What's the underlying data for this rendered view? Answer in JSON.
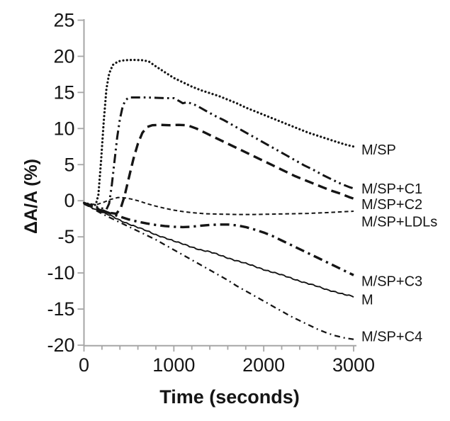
{
  "figure": {
    "background": "#ffffff",
    "ink_color": "#151515",
    "axis_color": "#a6a6a6"
  },
  "chart_data": {
    "type": "line",
    "title": "",
    "xlabel": "Time (seconds)",
    "ylabel": "ΔA/A (%)",
    "xlim": [
      0,
      3000
    ],
    "ylim": [
      -20,
      25
    ],
    "x_major_ticks": [
      0,
      1000,
      2000,
      3000
    ],
    "x_minor_tick_step": 200,
    "y_ticks": [
      25,
      20,
      15,
      10,
      5,
      0,
      -5,
      -10,
      -15,
      -20
    ],
    "grid": false,
    "legend_position": "labels-right-of-curve-ends",
    "series": [
      {
        "name": "M/SP",
        "line_style": "dotted",
        "label_value": 7.0,
        "points": [
          [
            0,
            -0.3
          ],
          [
            80,
            -0.5
          ],
          [
            130,
            -0.6
          ],
          [
            160,
            0.8
          ],
          [
            190,
            5.5
          ],
          [
            220,
            11
          ],
          [
            250,
            15.5
          ],
          [
            280,
            17.6
          ],
          [
            320,
            18.8
          ],
          [
            380,
            19.3
          ],
          [
            450,
            19.45
          ],
          [
            550,
            19.5
          ],
          [
            650,
            19.45
          ],
          [
            720,
            19.3
          ],
          [
            800,
            18.6
          ],
          [
            900,
            17.8
          ],
          [
            1000,
            17.0
          ],
          [
            1100,
            16.4
          ],
          [
            1200,
            15.8
          ],
          [
            1300,
            15.3
          ],
          [
            1400,
            14.9
          ],
          [
            1500,
            14.5
          ],
          [
            1600,
            14.0
          ],
          [
            1700,
            13.5
          ],
          [
            1800,
            12.9
          ],
          [
            1900,
            12.4
          ],
          [
            2000,
            11.9
          ],
          [
            2100,
            11.4
          ],
          [
            2200,
            10.9
          ],
          [
            2300,
            10.4
          ],
          [
            2400,
            9.9
          ],
          [
            2500,
            9.4
          ],
          [
            2600,
            9.0
          ],
          [
            2700,
            8.6
          ],
          [
            2800,
            8.2
          ],
          [
            2900,
            7.8
          ],
          [
            3000,
            7.5
          ]
        ]
      },
      {
        "name": "M/SP+C1",
        "line_style": "dash-dot-dot",
        "label_value": 1.6,
        "points": [
          [
            0,
            -0.3
          ],
          [
            100,
            -0.7
          ],
          [
            180,
            -1.0
          ],
          [
            250,
            -1.2
          ],
          [
            280,
            -0.4
          ],
          [
            310,
            2.2
          ],
          [
            340,
            5.5
          ],
          [
            370,
            8.8
          ],
          [
            400,
            11.3
          ],
          [
            430,
            13.0
          ],
          [
            460,
            13.9
          ],
          [
            500,
            14.3
          ],
          [
            600,
            14.3
          ],
          [
            700,
            14.3
          ],
          [
            800,
            14.25
          ],
          [
            900,
            14.2
          ],
          [
            1000,
            14.2
          ],
          [
            1060,
            13.8
          ],
          [
            1100,
            13.5
          ],
          [
            1150,
            13.65
          ],
          [
            1250,
            13.2
          ],
          [
            1350,
            12.5
          ],
          [
            1450,
            11.8
          ],
          [
            1550,
            11.2
          ],
          [
            1650,
            10.5
          ],
          [
            1750,
            9.8
          ],
          [
            1850,
            9.1
          ],
          [
            1950,
            8.4
          ],
          [
            2050,
            7.7
          ],
          [
            2150,
            7.0
          ],
          [
            2250,
            6.3
          ],
          [
            2350,
            5.6
          ],
          [
            2450,
            4.9
          ],
          [
            2550,
            4.3
          ],
          [
            2650,
            3.6
          ],
          [
            2750,
            3.0
          ],
          [
            2850,
            2.4
          ],
          [
            2950,
            1.9
          ],
          [
            3000,
            1.7
          ]
        ]
      },
      {
        "name": "M/SP+C2",
        "line_style": "long-dash",
        "label_value": -0.55,
        "points": [
          [
            0,
            -0.4
          ],
          [
            100,
            -0.9
          ],
          [
            200,
            -1.4
          ],
          [
            300,
            -1.7
          ],
          [
            360,
            -1.8
          ],
          [
            410,
            -1.0
          ],
          [
            450,
            0.6
          ],
          [
            500,
            3.2
          ],
          [
            550,
            5.8
          ],
          [
            600,
            7.9
          ],
          [
            650,
            9.4
          ],
          [
            700,
            10.2
          ],
          [
            760,
            10.45
          ],
          [
            850,
            10.5
          ],
          [
            950,
            10.45
          ],
          [
            1050,
            10.5
          ],
          [
            1150,
            10.45
          ],
          [
            1250,
            10.0
          ],
          [
            1350,
            9.4
          ],
          [
            1450,
            8.8
          ],
          [
            1550,
            8.2
          ],
          [
            1650,
            7.6
          ],
          [
            1750,
            7.0
          ],
          [
            1850,
            6.4
          ],
          [
            1950,
            5.8
          ],
          [
            2050,
            5.2
          ],
          [
            2150,
            4.6
          ],
          [
            2250,
            4.0
          ],
          [
            2350,
            3.4
          ],
          [
            2450,
            2.9
          ],
          [
            2550,
            2.4
          ],
          [
            2650,
            1.9
          ],
          [
            2750,
            1.4
          ],
          [
            2850,
            1.0
          ],
          [
            2950,
            0.5
          ],
          [
            3000,
            0.3
          ]
        ]
      },
      {
        "name": "M/SP+LDLs",
        "line_style": "short-dash",
        "label_value": -2.95,
        "points": [
          [
            0,
            -0.3
          ],
          [
            80,
            -0.5
          ],
          [
            150,
            -0.5
          ],
          [
            220,
            -0.2
          ],
          [
            300,
            0.2
          ],
          [
            380,
            0.45
          ],
          [
            450,
            0.4
          ],
          [
            520,
            0.25
          ],
          [
            600,
            0.0
          ],
          [
            700,
            -0.4
          ],
          [
            800,
            -0.75
          ],
          [
            900,
            -1.05
          ],
          [
            1000,
            -1.3
          ],
          [
            1100,
            -1.5
          ],
          [
            1200,
            -1.65
          ],
          [
            1350,
            -1.8
          ],
          [
            1500,
            -1.85
          ],
          [
            1700,
            -1.9
          ],
          [
            1900,
            -1.9
          ],
          [
            2100,
            -1.85
          ],
          [
            2300,
            -1.8
          ],
          [
            2500,
            -1.75
          ],
          [
            2700,
            -1.65
          ],
          [
            2850,
            -1.55
          ],
          [
            3000,
            -1.45
          ]
        ]
      },
      {
        "name": "M/SP+C3",
        "line_style": "dash-dot-bold",
        "label_value": -11.2,
        "points": [
          [
            0,
            -0.3
          ],
          [
            100,
            -0.8
          ],
          [
            200,
            -1.3
          ],
          [
            300,
            -1.8
          ],
          [
            400,
            -2.2
          ],
          [
            500,
            -2.6
          ],
          [
            600,
            -2.9
          ],
          [
            700,
            -3.15
          ],
          [
            800,
            -3.35
          ],
          [
            900,
            -3.5
          ],
          [
            1000,
            -3.6
          ],
          [
            1100,
            -3.65
          ],
          [
            1200,
            -3.6
          ],
          [
            1300,
            -3.45
          ],
          [
            1400,
            -3.35
          ],
          [
            1500,
            -3.3
          ],
          [
            1600,
            -3.3
          ],
          [
            1700,
            -3.4
          ],
          [
            1800,
            -3.65
          ],
          [
            1900,
            -4.0
          ],
          [
            2000,
            -4.4
          ],
          [
            2100,
            -4.9
          ],
          [
            2200,
            -5.5
          ],
          [
            2300,
            -6.1
          ],
          [
            2400,
            -6.7
          ],
          [
            2500,
            -7.3
          ],
          [
            2600,
            -7.9
          ],
          [
            2700,
            -8.5
          ],
          [
            2800,
            -9.1
          ],
          [
            2900,
            -9.7
          ],
          [
            3000,
            -10.3
          ]
        ]
      },
      {
        "name": "M",
        "line_style": "solid-noisy",
        "label_value": -13.75,
        "points": [
          [
            0,
            -0.4
          ],
          [
            100,
            -1.0
          ],
          [
            200,
            -1.6
          ],
          [
            300,
            -2.1
          ],
          [
            400,
            -2.7
          ],
          [
            500,
            -3.2
          ],
          [
            600,
            -3.7
          ],
          [
            700,
            -4.2
          ],
          [
            800,
            -4.7
          ],
          [
            900,
            -5.1
          ],
          [
            1000,
            -5.6
          ],
          [
            1100,
            -6.0
          ],
          [
            1200,
            -6.4
          ],
          [
            1300,
            -6.8
          ],
          [
            1400,
            -7.1
          ],
          [
            1500,
            -7.5
          ],
          [
            1600,
            -7.9
          ],
          [
            1700,
            -8.3
          ],
          [
            1800,
            -8.7
          ],
          [
            1900,
            -9.1
          ],
          [
            2000,
            -9.5
          ],
          [
            2100,
            -9.9
          ],
          [
            2200,
            -10.3
          ],
          [
            2300,
            -10.7
          ],
          [
            2400,
            -11.1
          ],
          [
            2500,
            -11.5
          ],
          [
            2600,
            -11.9
          ],
          [
            2700,
            -12.3
          ],
          [
            2800,
            -12.6
          ],
          [
            2900,
            -13.0
          ],
          [
            3000,
            -13.3
          ]
        ]
      },
      {
        "name": "M/SP+C4",
        "line_style": "dash-dot-fine",
        "label_value": -18.85,
        "points": [
          [
            0,
            -0.4
          ],
          [
            100,
            -1.1
          ],
          [
            200,
            -1.8
          ],
          [
            300,
            -2.4
          ],
          [
            400,
            -3.0
          ],
          [
            500,
            -3.6
          ],
          [
            600,
            -4.2
          ],
          [
            700,
            -4.8
          ],
          [
            800,
            -5.4
          ],
          [
            900,
            -6.1
          ],
          [
            1000,
            -6.8
          ],
          [
            1100,
            -7.5
          ],
          [
            1200,
            -8.2
          ],
          [
            1300,
            -8.9
          ],
          [
            1400,
            -9.6
          ],
          [
            1500,
            -10.3
          ],
          [
            1600,
            -11.0
          ],
          [
            1700,
            -11.8
          ],
          [
            1800,
            -12.5
          ],
          [
            1900,
            -13.2
          ],
          [
            2000,
            -13.9
          ],
          [
            2100,
            -14.6
          ],
          [
            2200,
            -15.3
          ],
          [
            2300,
            -16.0
          ],
          [
            2400,
            -16.6
          ],
          [
            2500,
            -17.2
          ],
          [
            2600,
            -17.8
          ],
          [
            2700,
            -18.3
          ],
          [
            2800,
            -18.7
          ],
          [
            2900,
            -19.0
          ],
          [
            3000,
            -19.2
          ]
        ]
      }
    ]
  }
}
